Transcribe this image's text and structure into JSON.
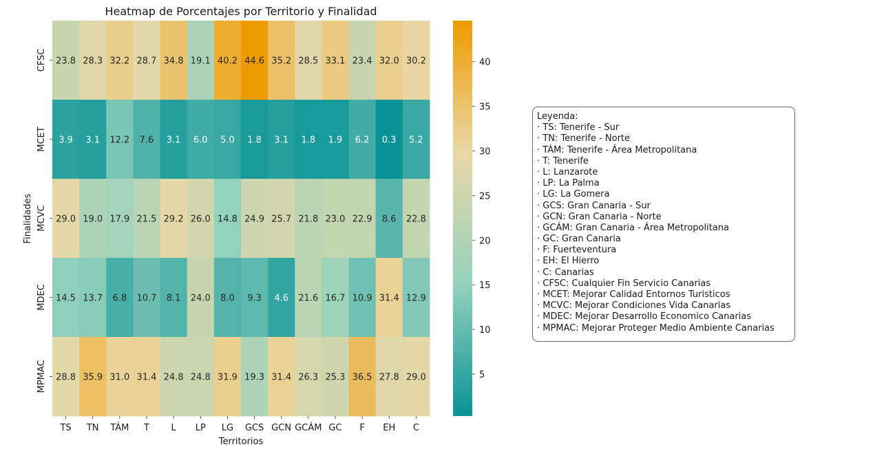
{
  "chart_data": {
    "type": "heatmap",
    "title": "Heatmap de Porcentajes por Territorio y Finalidad",
    "xlabel": "Territorios",
    "ylabel": "Finalidades",
    "x_categories": [
      "TS",
      "TN",
      "TÁM",
      "T",
      "L",
      "LP",
      "LG",
      "GCS",
      "GCN",
      "GCÁM",
      "GC",
      "F",
      "EH",
      "C"
    ],
    "y_categories": [
      "CFSC",
      "MCET",
      "MCVC",
      "MDEC",
      "MPMAC"
    ],
    "values": [
      [
        23.8,
        28.3,
        32.2,
        28.7,
        34.8,
        19.1,
        40.2,
        44.6,
        35.2,
        28.5,
        33.1,
        23.4,
        32.0,
        30.2
      ],
      [
        3.9,
        3.1,
        12.2,
        7.6,
        3.1,
        6.0,
        5.0,
        1.8,
        3.1,
        1.8,
        1.9,
        6.2,
        0.3,
        5.2
      ],
      [
        29.0,
        19.0,
        17.9,
        21.5,
        29.2,
        26.0,
        14.8,
        24.9,
        25.7,
        21.8,
        23.0,
        22.9,
        8.6,
        22.8
      ],
      [
        14.5,
        13.7,
        6.8,
        10.7,
        8.1,
        24.0,
        8.0,
        9.3,
        4.6,
        21.6,
        16.7,
        10.9,
        31.4,
        12.9
      ],
      [
        28.8,
        35.9,
        31.0,
        31.4,
        24.8,
        24.8,
        31.9,
        19.3,
        31.4,
        26.3,
        25.3,
        36.5,
        27.8,
        29.0
      ]
    ],
    "colorbar": {
      "vmin": 0.3,
      "vmax": 44.6,
      "ticks": [
        5,
        10,
        15,
        20,
        25,
        30,
        35,
        40
      ],
      "colors": [
        "#0a9396",
        "#94d2bd",
        "#e9d8a6",
        "#ee9b00"
      ]
    }
  },
  "legend": {
    "title": "Leyenda:",
    "items": [
      "· TS: Tenerife - Sur",
      "· TN: Tenerife - Norte",
      "· TÁM: Tenerife - Área Metropolitana",
      "· T: Tenerife",
      "· L: Lanzarote",
      "· LP: La Palma",
      "· LG: La Gomera",
      "· GCS: Gran Canaria - Sur",
      "· GCN: Gran Canaria - Norte",
      "· GCÁM: Gran Canaria - Área Metropolitana",
      "· GC: Gran Canaria",
      "· F: Fuerteventura",
      "· EH: El Hierro",
      "· C: Canarias",
      "· CFSC: Cualquier Fin Servicio Canarias",
      "· MCET: Mejorar Calidad Entornos Turisticos",
      "· MCVC: Mejorar Condiciones Vida Canarias",
      "· MDEC: Mejorar Desarrollo Economico Canarias",
      "· MPMAC: Mejorar Proteger Medio Ambiente Canarias"
    ]
  }
}
